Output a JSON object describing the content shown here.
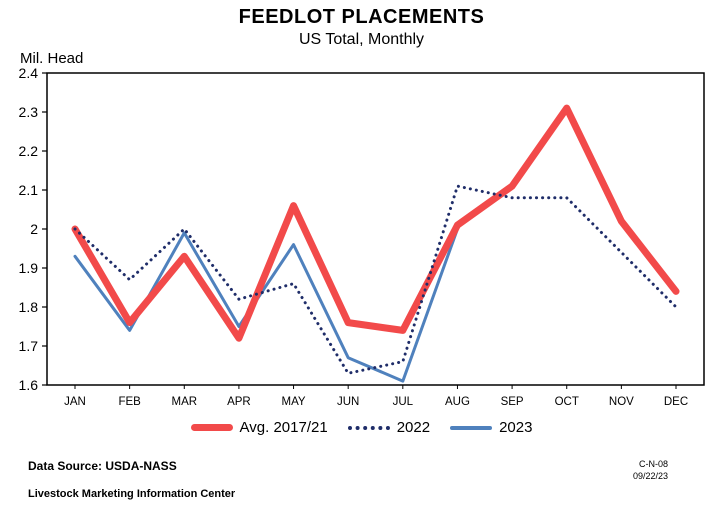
{
  "header": {
    "title": "FEEDLOT PLACEMENTS",
    "subtitle": "US Total, Monthly"
  },
  "chart_data": {
    "type": "line",
    "title": "FEEDLOT PLACEMENTS",
    "subtitle": "US Total, Monthly",
    "ylabel": "Mil. Head",
    "xlabel": "",
    "ylim": [
      1.6,
      2.4
    ],
    "y_ticks": [
      "2.4",
      "2.3",
      "2.2",
      "2.1",
      "2",
      "1.9",
      "1.8",
      "1.7",
      "1.6"
    ],
    "grid": false,
    "legend_position": "bottom",
    "categories": [
      "JAN",
      "FEB",
      "MAR",
      "APR",
      "MAY",
      "JUN",
      "JUL",
      "AUG",
      "SEP",
      "OCT",
      "NOV",
      "DEC"
    ],
    "series": [
      {
        "name": "Avg. 2017/21",
        "color": "#f24a4a",
        "style": "solid-thick",
        "values": [
          2.0,
          1.76,
          1.93,
          1.72,
          2.06,
          1.76,
          1.74,
          2.01,
          2.11,
          2.31,
          2.02,
          1.84
        ]
      },
      {
        "name": "2022",
        "color": "#1f2d69",
        "style": "dotted",
        "values": [
          2.0,
          1.87,
          2.0,
          1.82,
          1.86,
          1.63,
          1.66,
          2.11,
          2.08,
          2.08,
          1.94,
          1.8
        ]
      },
      {
        "name": "2023",
        "color": "#4f81bd",
        "style": "solid",
        "values": [
          1.93,
          1.74,
          1.99,
          1.75,
          1.96,
          1.67,
          1.61,
          2.0,
          null,
          null,
          null,
          null
        ]
      }
    ]
  },
  "footer": {
    "source_label": "Data Source:  USDA-NASS",
    "org": "Livestock Marketing Information Center",
    "code": "C-N-08",
    "date": "09/22/23"
  }
}
